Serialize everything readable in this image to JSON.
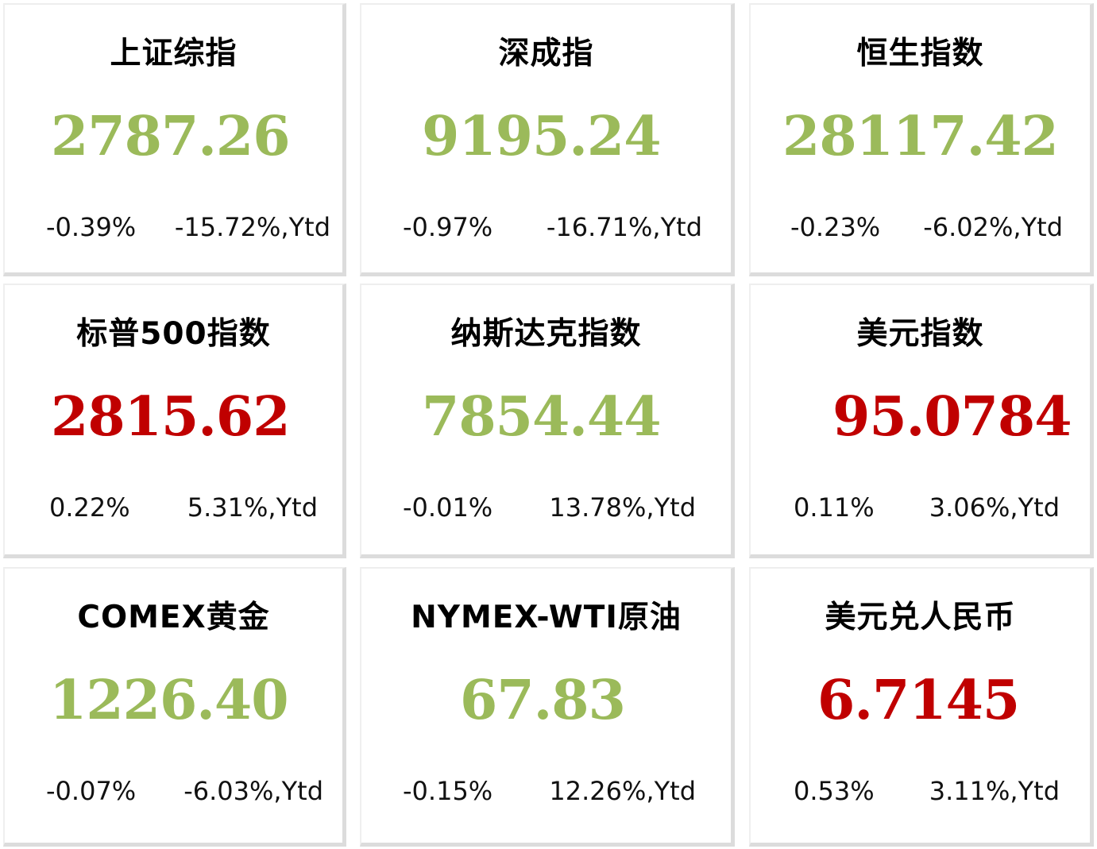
{
  "colors": {
    "down": "#9bba5a",
    "up": "#c00000"
  },
  "cards": [
    {
      "title": "上证综指",
      "value": "2787.26",
      "change": "-0.39%",
      "ytd": "-15.72%,Ytd",
      "direction": "down"
    },
    {
      "title": "深成指",
      "value": "9195.24",
      "change": "-0.97%",
      "ytd": "-16.71%,Ytd",
      "direction": "down"
    },
    {
      "title": "恒生指数",
      "value": "28117.42",
      "change": "-0.23%",
      "ytd": "-6.02%,Ytd",
      "direction": "down"
    },
    {
      "title": "标普500指数",
      "value": "2815.62",
      "change": "0.22%",
      "ytd": "5.31%,Ytd",
      "direction": "up"
    },
    {
      "title": "纳斯达克指数",
      "value": "7854.44",
      "change": "-0.01%",
      "ytd": "13.78%,Ytd",
      "direction": "down"
    },
    {
      "title": "美元指数",
      "value": "95.0784",
      "change": "0.11%",
      "ytd": "3.06%,Ytd",
      "direction": "up"
    },
    {
      "title": "COMEX黄金",
      "value": "1226.40",
      "change": "-0.07%",
      "ytd": "-6.03%,Ytd",
      "direction": "down"
    },
    {
      "title": "NYMEX-WTI原油",
      "value": "67.83",
      "change": "-0.15%",
      "ytd": "12.26%,Ytd",
      "direction": "down"
    },
    {
      "title": "美元兑人民币",
      "value": "6.7145",
      "change": "0.53%",
      "ytd": "3.11%,Ytd",
      "direction": "up"
    }
  ]
}
